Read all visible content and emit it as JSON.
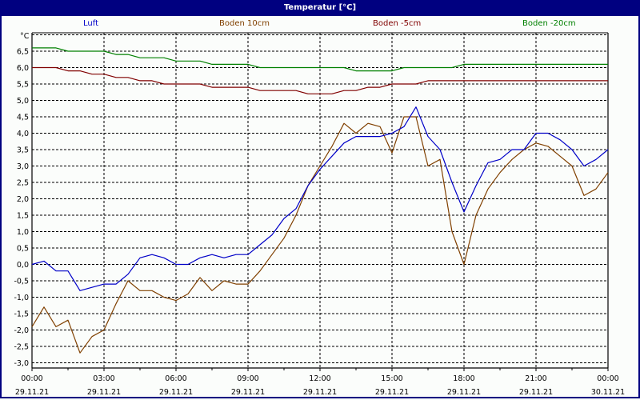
{
  "window": {
    "title": "Temperatur [°C]"
  },
  "legend": [
    {
      "label": "Luft",
      "color": "#0000c8"
    },
    {
      "label": "Boden 10cm",
      "color": "#804000"
    },
    {
      "label": "Boden -5cm",
      "color": "#800000"
    },
    {
      "label": "Boden -20cm",
      "color": "#008000"
    }
  ],
  "chart_data": {
    "type": "line",
    "title": "Temperatur [°C]",
    "ylabel": "°C",
    "xlabel": "",
    "ylim": [
      -3.0,
      7.0
    ],
    "y_ticks": [
      "6,5",
      "6,0",
      "5,5",
      "5,0",
      "4,5",
      "4,0",
      "3,5",
      "3,0",
      "2,5",
      "2,0",
      "1,5",
      "1,0",
      "0,5",
      "0,0",
      "-0,5",
      "-1,0",
      "-1,5",
      "-2,0",
      "-2,5",
      "-3,0"
    ],
    "x_ticks": [
      {
        "time": "00:00",
        "date": "29.11.21"
      },
      {
        "time": "03:00",
        "date": "29.11.21"
      },
      {
        "time": "06:00",
        "date": "29.11.21"
      },
      {
        "time": "09:00",
        "date": "29.11.21"
      },
      {
        "time": "12:00",
        "date": "29.11.21"
      },
      {
        "time": "15:00",
        "date": "29.11.21"
      },
      {
        "time": "18:00",
        "date": "29.11.21"
      },
      {
        "time": "21:00",
        "date": "29.11.21"
      },
      {
        "time": "00:00",
        "date": "30.11.21"
      }
    ],
    "grid": true,
    "legend_position": "top",
    "x_hours": [
      0,
      0.5,
      1,
      1.5,
      2,
      2.5,
      3,
      3.5,
      4,
      4.5,
      5,
      5.5,
      6,
      6.5,
      7,
      7.5,
      8,
      8.5,
      9,
      9.5,
      10,
      10.5,
      11,
      11.5,
      12,
      12.5,
      13,
      13.5,
      14,
      14.5,
      15,
      15.5,
      16,
      16.5,
      17,
      17.5,
      18,
      18.5,
      19,
      19.5,
      20,
      20.5,
      21,
      21.5,
      22,
      22.5,
      23,
      23.5,
      24
    ],
    "series": [
      {
        "name": "Luft",
        "color": "#0000c8",
        "values": [
          0.0,
          0.1,
          -0.2,
          -0.2,
          -0.8,
          -0.7,
          -0.6,
          -0.6,
          -0.3,
          0.2,
          0.3,
          0.2,
          0.0,
          0.0,
          0.2,
          0.3,
          0.2,
          0.3,
          0.3,
          0.6,
          0.9,
          1.4,
          1.7,
          2.4,
          2.9,
          3.3,
          3.7,
          3.9,
          3.9,
          3.9,
          4.0,
          4.2,
          4.8,
          3.9,
          3.5,
          2.5,
          1.6,
          2.4,
          3.1,
          3.2,
          3.5,
          3.5,
          4.0,
          4.0,
          3.8,
          3.5,
          3.0,
          3.2,
          3.5
        ]
      },
      {
        "name": "Boden 10cm",
        "color": "#804000",
        "values": [
          -1.9,
          -1.3,
          -1.9,
          -1.7,
          -2.7,
          -2.2,
          -2.0,
          -1.2,
          -0.5,
          -0.8,
          -0.8,
          -1.0,
          -1.1,
          -0.9,
          -0.4,
          -0.8,
          -0.5,
          -0.6,
          -0.6,
          -0.2,
          0.3,
          0.8,
          1.5,
          2.4,
          3.0,
          3.6,
          4.3,
          4.0,
          4.3,
          4.2,
          3.4,
          4.5,
          4.5,
          3.0,
          3.2,
          1.0,
          0.0,
          1.5,
          2.3,
          2.8,
          3.2,
          3.5,
          3.7,
          3.6,
          3.3,
          3.0,
          2.1,
          2.3,
          2.8
        ]
      },
      {
        "name": "Boden -5cm",
        "color": "#800000",
        "values": [
          6.0,
          6.0,
          6.0,
          5.9,
          5.9,
          5.8,
          5.8,
          5.7,
          5.7,
          5.6,
          5.6,
          5.5,
          5.5,
          5.5,
          5.5,
          5.4,
          5.4,
          5.4,
          5.4,
          5.3,
          5.3,
          5.3,
          5.3,
          5.2,
          5.2,
          5.2,
          5.3,
          5.3,
          5.4,
          5.4,
          5.5,
          5.5,
          5.5,
          5.6,
          5.6,
          5.6,
          5.6,
          5.6,
          5.6,
          5.6,
          5.6,
          5.6,
          5.6,
          5.6,
          5.6,
          5.6,
          5.6,
          5.6,
          5.6
        ]
      },
      {
        "name": "Boden -20cm",
        "color": "#008000",
        "values": [
          6.6,
          6.6,
          6.6,
          6.5,
          6.5,
          6.5,
          6.5,
          6.4,
          6.4,
          6.3,
          6.3,
          6.3,
          6.2,
          6.2,
          6.2,
          6.1,
          6.1,
          6.1,
          6.1,
          6.0,
          6.0,
          6.0,
          6.0,
          6.0,
          6.0,
          6.0,
          6.0,
          5.9,
          5.9,
          5.9,
          5.9,
          6.0,
          6.0,
          6.0,
          6.0,
          6.0,
          6.1,
          6.1,
          6.1,
          6.1,
          6.1,
          6.1,
          6.1,
          6.1,
          6.1,
          6.1,
          6.1,
          6.1,
          6.1
        ]
      }
    ]
  }
}
